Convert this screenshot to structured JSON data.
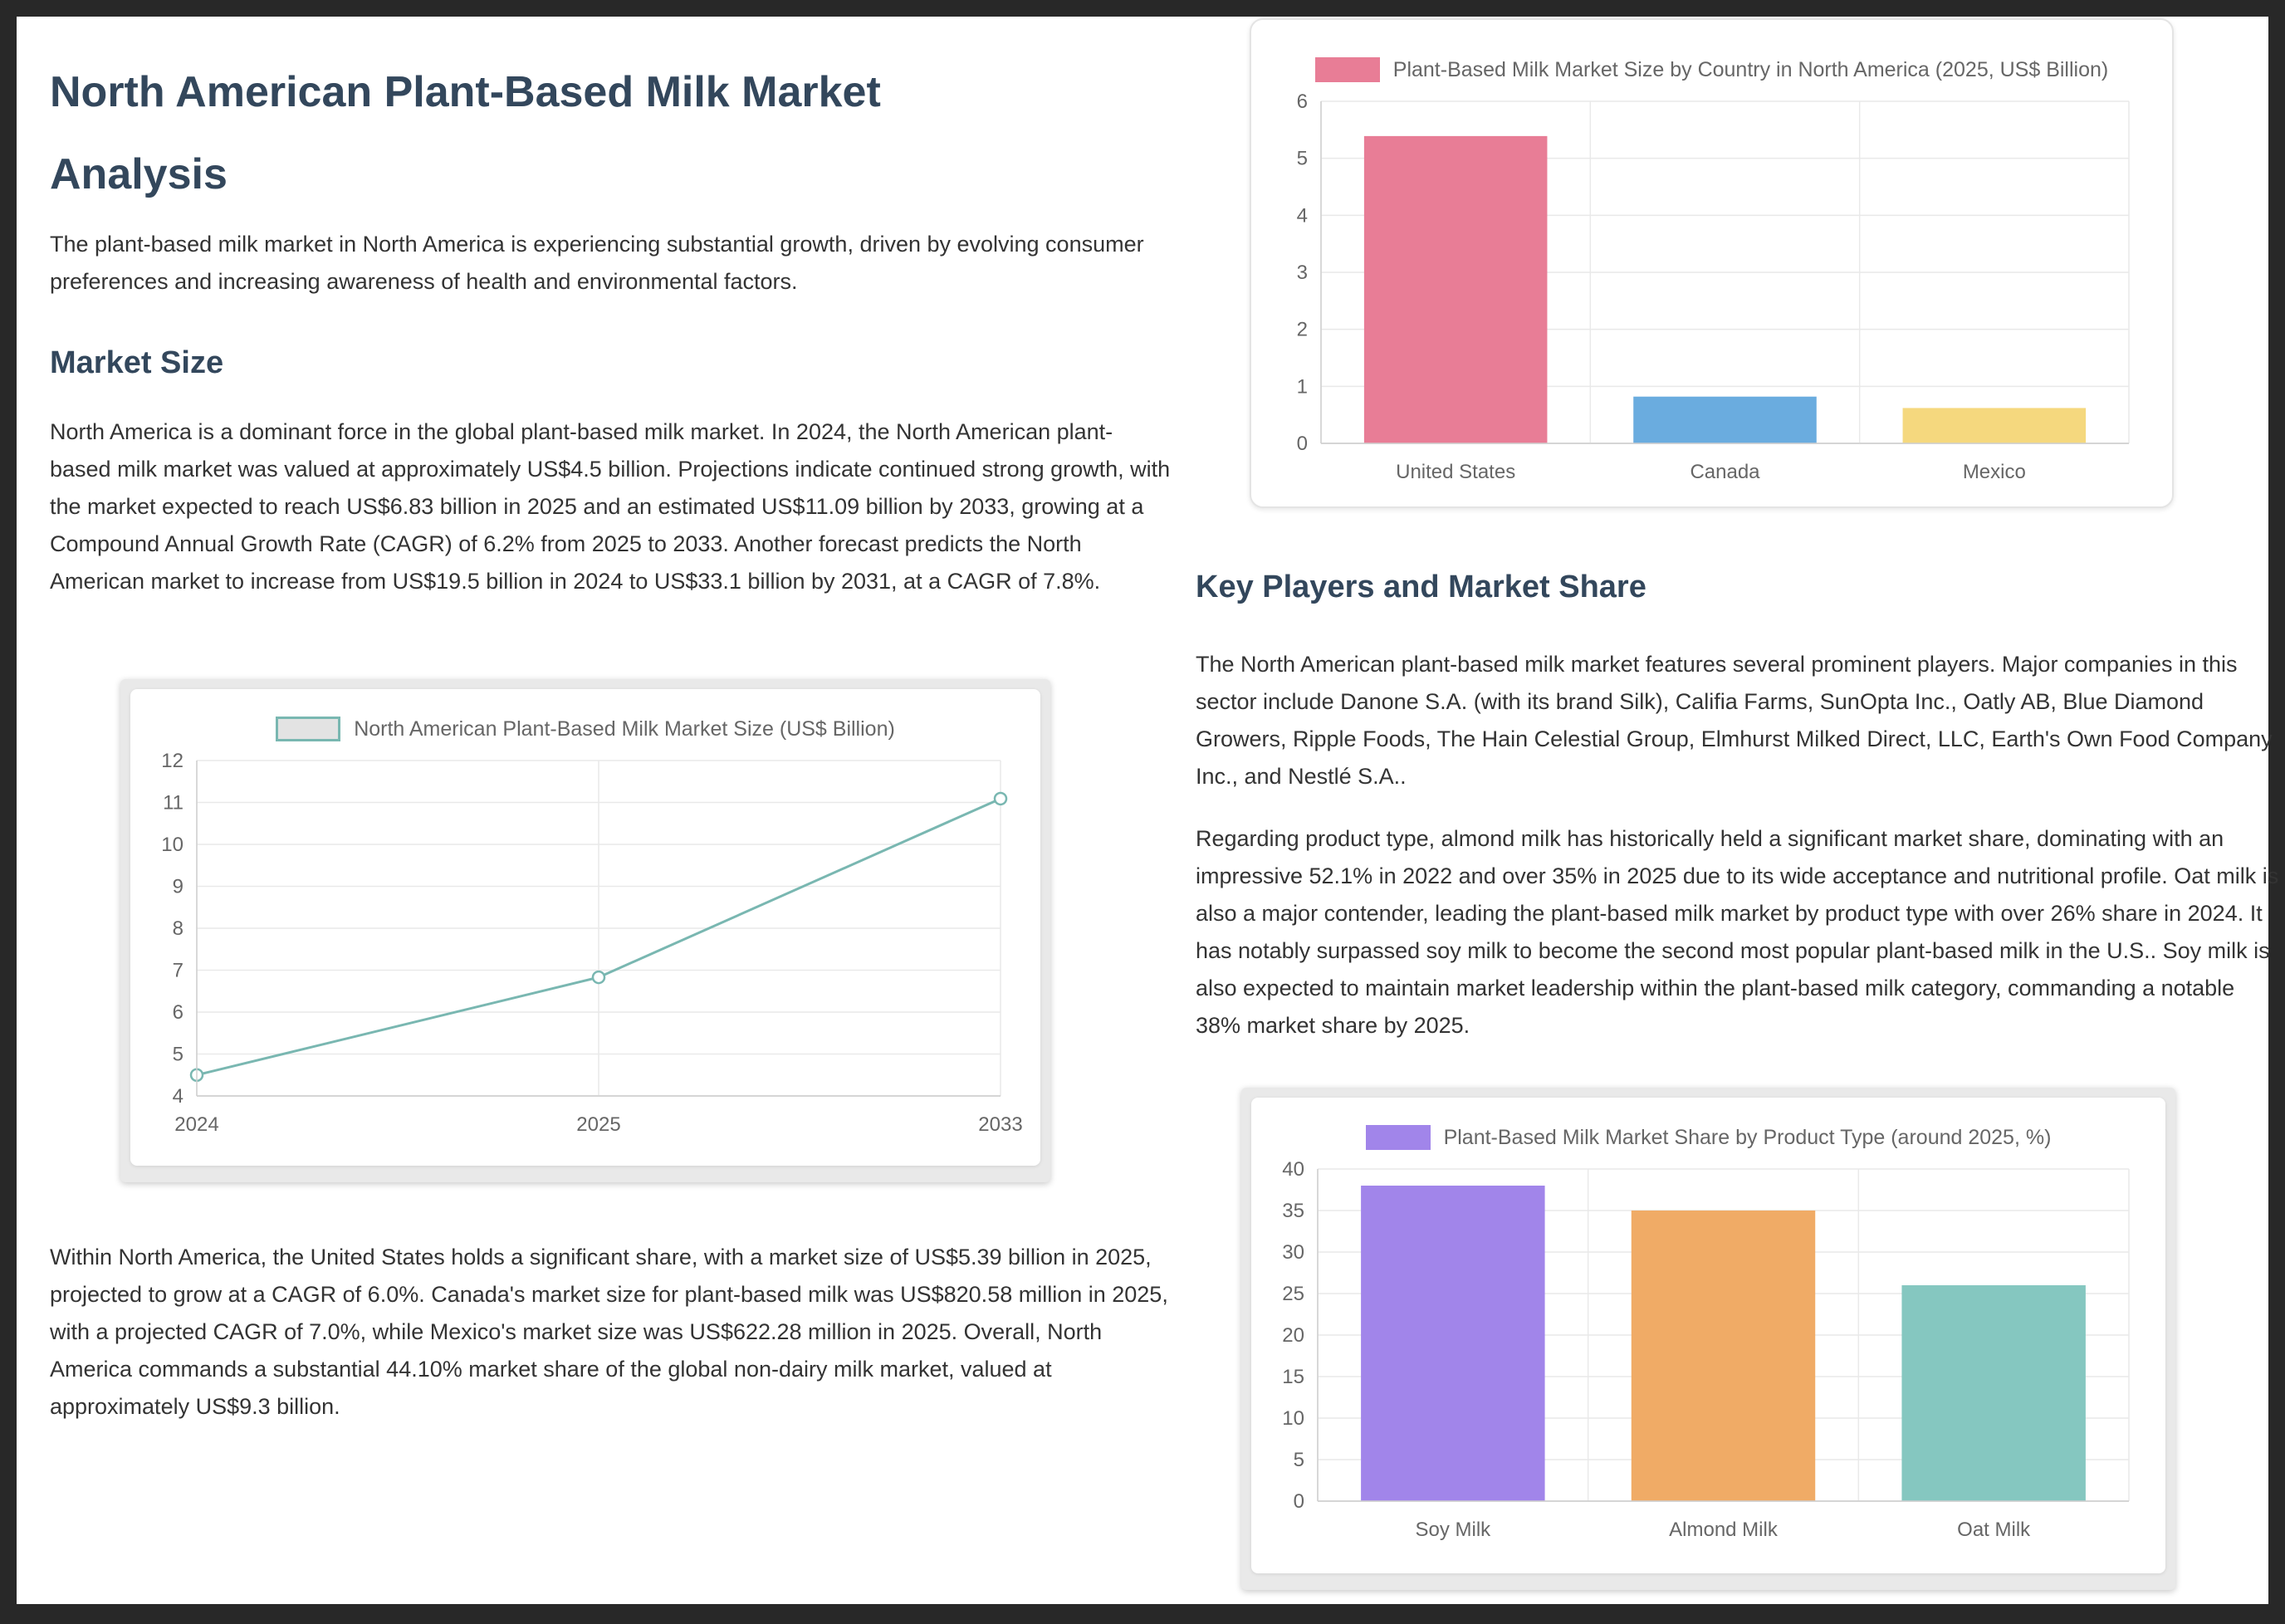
{
  "article": {
    "title": "North American Plant-Based Milk Market Analysis",
    "intro": "The plant-based milk market in North America is experiencing substantial growth, driven by evolving consumer preferences and increasing awareness of health and environmental factors.",
    "market_size_heading": "Market Size",
    "market_size_p1": "North America is a dominant force in the global plant-based milk market. In 2024, the North American plant-based milk market was valued at approximately US$4.5 billion. Projections indicate continued strong growth, with the market expected to reach US$6.83 billion in 2025 and an estimated US$11.09 billion by 2033, growing at a Compound Annual Growth Rate (CAGR) of 6.2% from 2025 to 2033. Another forecast predicts the North American market to increase from US$19.5 billion in 2024 to US$33.1 billion by 2031, at a CAGR of 7.8%.",
    "market_size_p2": "Within North America, the United States holds a significant share, with a market size of US$5.39 billion in 2025, projected to grow at a CAGR of 6.0%. Canada's market size for plant-based milk was US$820.58 million in 2025, with a projected CAGR of 7.0%, while Mexico's market size was US$622.28 million in 2025. Overall, North America commands a substantial 44.10% market share of the global non-dairy milk market, valued at approximately US$9.3 billion.",
    "key_players_heading": "Key Players and Market Share",
    "key_players_p1": "The North American plant-based milk market features several prominent players. Major companies in this sector include Danone S.A. (with its brand Silk), Califia Farms, SunOpta Inc., Oatly AB, Blue Diamond Growers, Ripple Foods, The Hain Celestial Group, Elmhurst Milked Direct, LLC, Earth's Own Food Company Inc., and Nestlé S.A..",
    "key_players_p2": "Regarding product type, almond milk has historically held a significant market share, dominating with an impressive 52.1% in 2022 and over 35% in 2025 due to its wide acceptance and nutritional profile. Oat milk is also a major contender, leading the plant-based milk market by product type with over 26% share in 2024. It has notably surpassed soy milk to become the second most popular plant-based milk in the U.S.. Soy milk is also expected to maintain market leadership within the plant-based milk category, commanding a notable 38% market share by 2025."
  },
  "colors": {
    "background": "#282828",
    "page": "#ffffff",
    "heading": "#33475c",
    "body_text": "#333333",
    "axis_text": "#666666",
    "gridline": "#e9e9e9",
    "axis_line": "#cfcfcf"
  },
  "chart_data": [
    {
      "id": "north-america-market-size-line",
      "type": "line",
      "title": "North American Plant-Based Milk Market Size (US$ Billion)",
      "categories": [
        "2024",
        "2025",
        "2033"
      ],
      "values": [
        4.5,
        6.83,
        11.09
      ],
      "ylim": [
        4,
        12
      ],
      "ytick_step": 1,
      "line_color": "#79b7b1",
      "legend_swatch": {
        "fill": "#e3e3e3",
        "border": "#79b7b1"
      },
      "legend_position": "top",
      "grid": true,
      "xlabel": "",
      "ylabel": ""
    },
    {
      "id": "market-size-by-country-bar",
      "type": "bar",
      "title": "Plant-Based Milk Market Size by Country in North America (2025, US$ Billion)",
      "categories": [
        "United States",
        "Canada",
        "Mexico"
      ],
      "values": [
        5.39,
        0.82,
        0.62
      ],
      "bar_colors": [
        "#e87d96",
        "#6aacdf",
        "#f5d87e"
      ],
      "ylim": [
        0,
        6
      ],
      "ytick_step": 1,
      "legend_swatch": {
        "fill": "#e87d96",
        "border": ""
      },
      "legend_position": "top",
      "grid": true,
      "xlabel": "",
      "ylabel": ""
    },
    {
      "id": "market-share-by-product-type-bar",
      "type": "bar",
      "title": "Plant-Based Milk Market Share by Product Type (around 2025, %)",
      "categories": [
        "Soy Milk",
        "Almond Milk",
        "Oat Milk"
      ],
      "values": [
        38,
        35,
        26
      ],
      "bar_colors": [
        "#a185ea",
        "#f0ab66",
        "#85c7c0"
      ],
      "ylim": [
        0,
        40
      ],
      "ytick_step": 5,
      "legend_swatch": {
        "fill": "#a185ea",
        "border": ""
      },
      "legend_position": "top",
      "grid": true,
      "xlabel": "",
      "ylabel": ""
    }
  ]
}
